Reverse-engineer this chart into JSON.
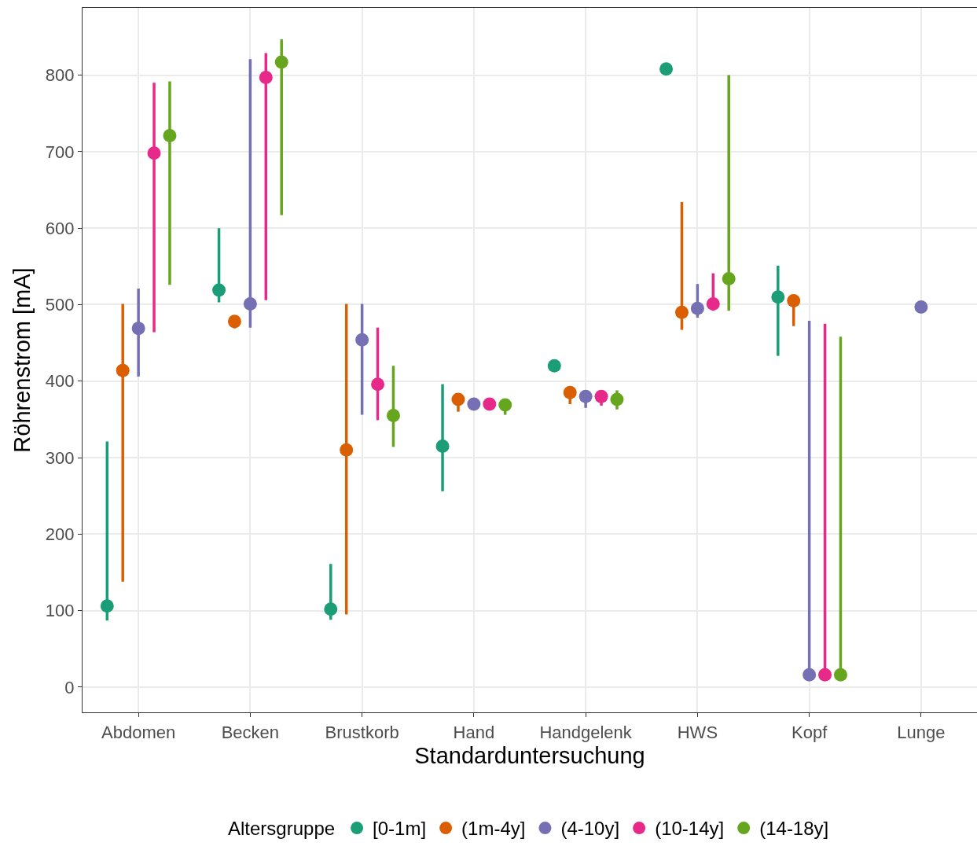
{
  "chart_data": {
    "type": "scatter",
    "xlabel": "Standarduntersuchung",
    "ylabel": "Röhrenstrom [mA]",
    "legend_title": "Altersgruppe",
    "legend": "bottom",
    "grid": true,
    "marker": "circle",
    "ylim": [
      -33,
      888
    ],
    "yticks": [
      0,
      100,
      200,
      300,
      400,
      500,
      600,
      700,
      800
    ],
    "categories": [
      "Abdomen",
      "Becken",
      "Brustkorb",
      "Hand",
      "Handgelenk",
      "HWS",
      "Kopf",
      "Lunge"
    ],
    "series": [
      {
        "name": "[0-1m]",
        "color": "#1b9e77",
        "values": [
          106,
          519,
          102,
          315,
          420,
          808,
          510,
          null
        ],
        "errors": [
          [
            87,
            321
          ],
          [
            503,
            600
          ],
          [
            88,
            161
          ],
          [
            256,
            396
          ],
          null,
          null,
          [
            433,
            551
          ],
          null
        ]
      },
      {
        "name": "(1m-4y]",
        "color": "#d95f02",
        "values": [
          414,
          478,
          310,
          376,
          385,
          490,
          505,
          null
        ],
        "errors": [
          [
            138,
            501
          ],
          [
            469,
            486
          ],
          [
            95,
            501
          ],
          [
            360,
            381
          ],
          [
            370,
            393
          ],
          [
            467,
            634
          ],
          [
            472,
            513
          ],
          null
        ]
      },
      {
        "name": "(4-10y]",
        "color": "#7570b3",
        "values": [
          469,
          501,
          454,
          370,
          380,
          495,
          16,
          497
        ],
        "errors": [
          [
            406,
            521
          ],
          [
            470,
            821
          ],
          [
            356,
            501
          ],
          [
            363,
            376
          ],
          [
            365,
            388
          ],
          [
            483,
            527
          ],
          [
            16,
            479
          ],
          null
        ]
      },
      {
        "name": "(10-14y]",
        "color": "#e7298a",
        "values": [
          698,
          797,
          396,
          370,
          380,
          501,
          16,
          null
        ],
        "errors": [
          [
            464,
            790
          ],
          [
            506,
            829
          ],
          [
            349,
            470
          ],
          [
            363,
            377
          ],
          [
            368,
            387
          ],
          [
            492,
            541
          ],
          [
            16,
            475
          ],
          null
        ]
      },
      {
        "name": "(14-18y]",
        "color": "#66a61e",
        "values": [
          721,
          817,
          355,
          369,
          376,
          534,
          16,
          null
        ],
        "errors": [
          [
            526,
            792
          ],
          [
            617,
            847
          ],
          [
            314,
            420
          ],
          [
            356,
            376
          ],
          [
            363,
            388
          ],
          [
            492,
            800
          ],
          [
            16,
            458
          ],
          null
        ]
      }
    ]
  }
}
